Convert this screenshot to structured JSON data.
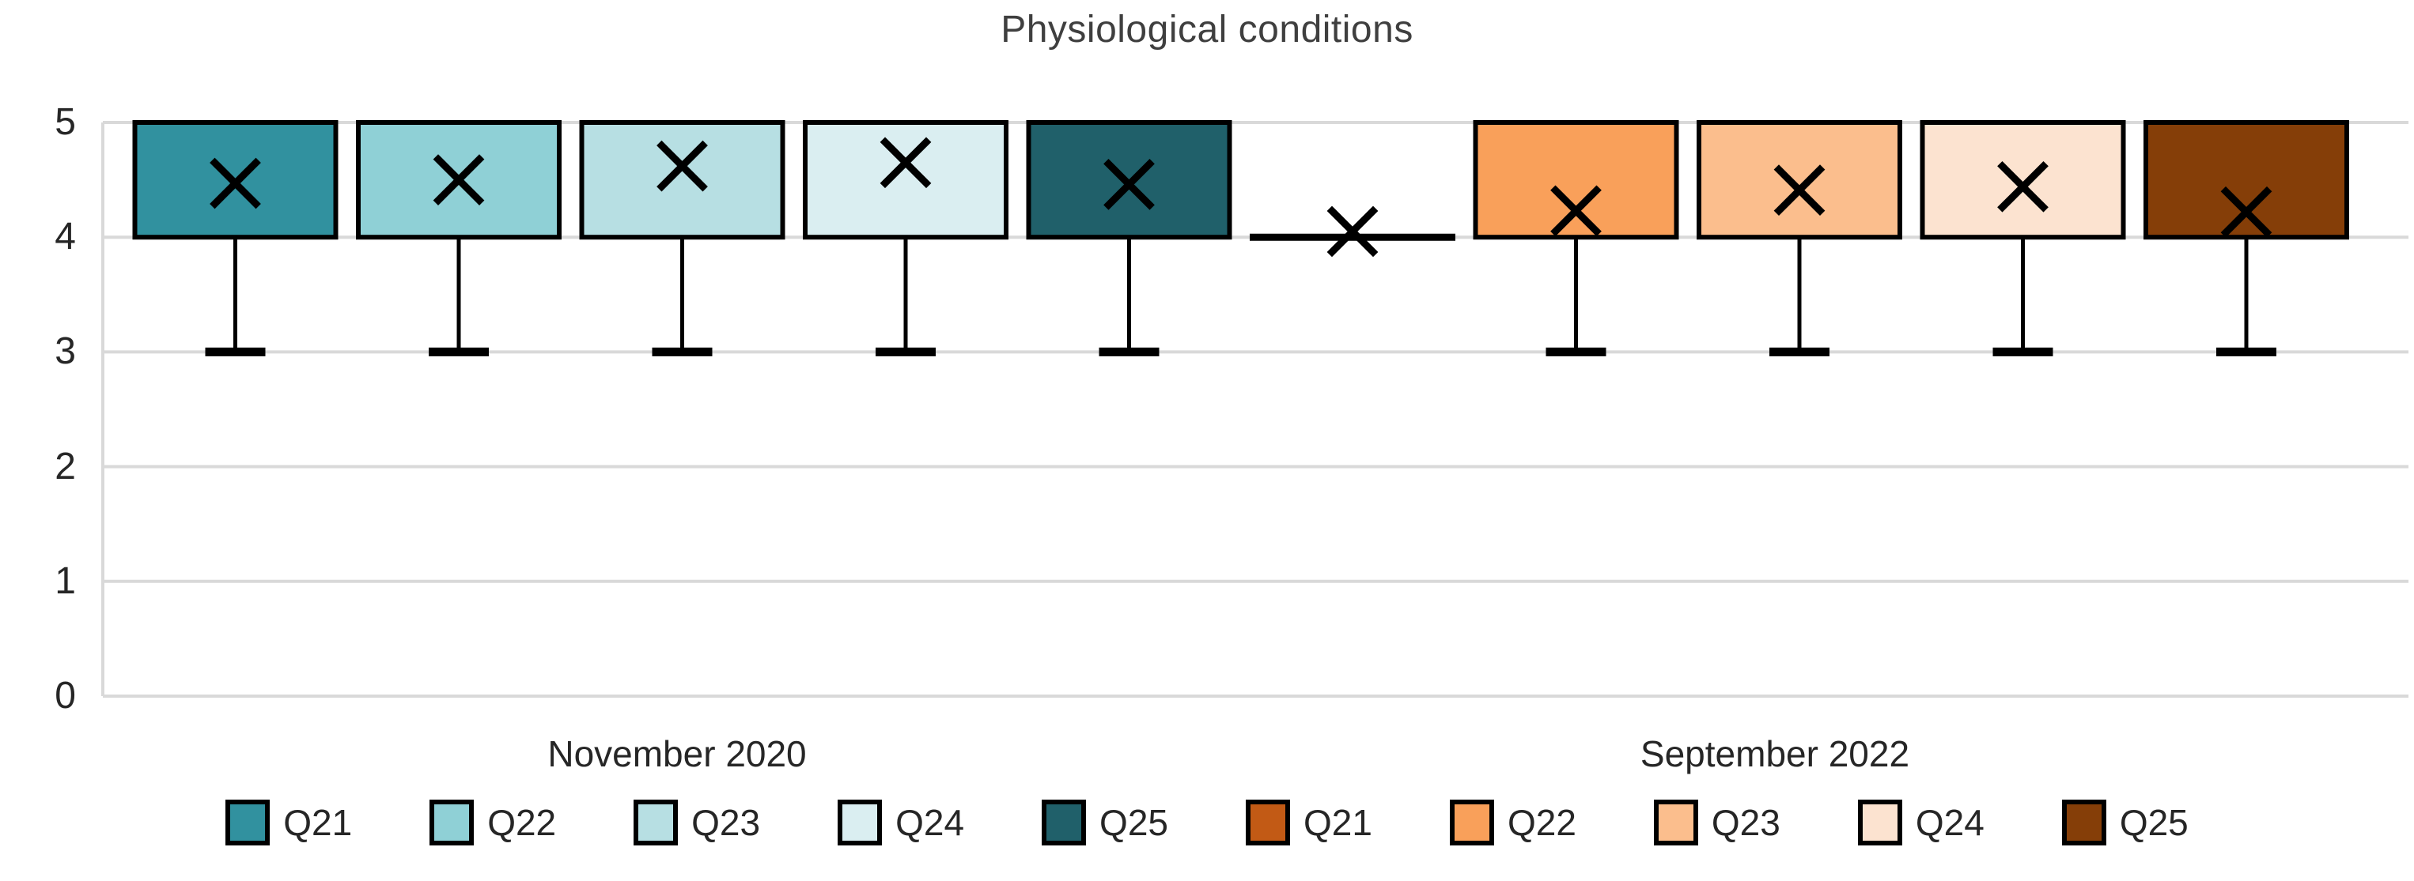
{
  "title": "Physiological conditions",
  "colors": {
    "background": "#FFFFFF",
    "gridline": "#D9D9D9",
    "axis_line": "#D9D9D9",
    "box_border": "#000000",
    "whisker": "#000000",
    "mean_marker": "#000000",
    "title_text": "#3F3F3F",
    "label_text": "#262626"
  },
  "y_axis": {
    "ticks": [
      "5",
      "4",
      "3",
      "2",
      "1",
      "0"
    ]
  },
  "chart_data": {
    "type": "boxplot",
    "title": "Physiological conditions",
    "ylabel": "",
    "xlabel": "",
    "ylim": [
      0,
      5
    ],
    "yticks": [
      0,
      1,
      2,
      3,
      4,
      5
    ],
    "grid": true,
    "legend_position": "bottom",
    "mean_marker": "x",
    "groups": [
      {
        "label": "November 2020",
        "series": [
          {
            "name": "Q21",
            "color": "#31919F",
            "min": 3,
            "q1": 4,
            "median": 4,
            "q3": 5,
            "max": 5,
            "mean": 4.47
          },
          {
            "name": "Q22",
            "color": "#8FD0D6",
            "min": 3,
            "q1": 4,
            "median": 4,
            "q3": 5,
            "max": 5,
            "mean": 4.5
          },
          {
            "name": "Q23",
            "color": "#B7DFE3",
            "min": 3,
            "q1": 4,
            "median": 4,
            "q3": 5,
            "max": 5,
            "mean": 4.62
          },
          {
            "name": "Q24",
            "color": "#DAEEF1",
            "min": 3,
            "q1": 4,
            "median": 4,
            "q3": 5,
            "max": 5,
            "mean": 4.65
          },
          {
            "name": "Q25",
            "color": "#20606A",
            "min": 3,
            "q1": 4,
            "median": 4,
            "q3": 5,
            "max": 5,
            "mean": 4.46
          }
        ]
      },
      {
        "label": "September 2022",
        "series": [
          {
            "name": "Q21",
            "color": "#C25A15",
            "min": 4,
            "q1": 4,
            "median": 4,
            "q3": 4,
            "max": 4,
            "mean": 4.05
          },
          {
            "name": "Q22",
            "color": "#F9A05A",
            "min": 3,
            "q1": 4,
            "median": 4,
            "q3": 5,
            "max": 5,
            "mean": 4.23
          },
          {
            "name": "Q23",
            "color": "#FBBE8D",
            "min": 3,
            "q1": 4,
            "median": 4,
            "q3": 5,
            "max": 5,
            "mean": 4.41
          },
          {
            "name": "Q24",
            "color": "#FCE3D0",
            "min": 3,
            "q1": 4,
            "median": 4,
            "q3": 5,
            "max": 5,
            "mean": 4.44
          },
          {
            "name": "Q25",
            "color": "#853E08",
            "min": 3,
            "q1": 4,
            "median": 4,
            "q3": 5,
            "max": 5,
            "mean": 4.22
          }
        ]
      }
    ]
  }
}
